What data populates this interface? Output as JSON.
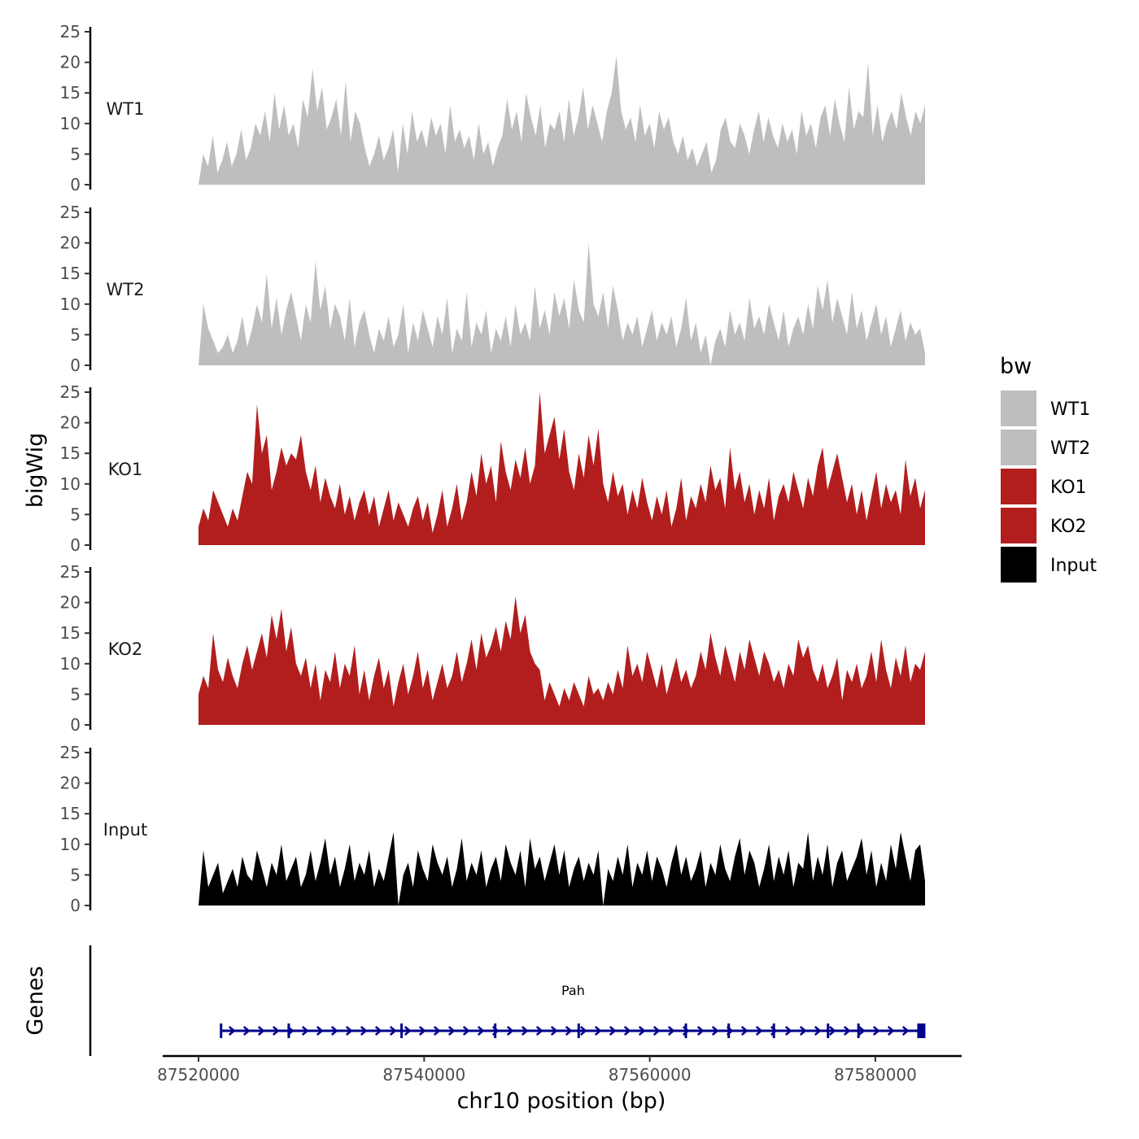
{
  "chart_data": {
    "type": "area",
    "title": "",
    "ylabel": "bigWig",
    "xlabel": "chr10 position (bp)",
    "xlim": [
      87520000,
      87584400
    ],
    "ylim": [
      0,
      25
    ],
    "yticks": [
      "0",
      "5",
      "10",
      "15",
      "20",
      "25"
    ],
    "xticks": [
      {
        "value": 87520000,
        "label": "87520000"
      },
      {
        "value": 87540000,
        "label": "87540000"
      },
      {
        "value": 87560000,
        "label": "87560000"
      },
      {
        "value": 87580000,
        "label": "87580000"
      }
    ],
    "legend": {
      "title": "bw",
      "position": "right",
      "items": [
        {
          "name": "WT1",
          "color": "#bebebe"
        },
        {
          "name": "WT2",
          "color": "#bebebe"
        },
        {
          "name": "KO1",
          "color": "#b21e1e"
        },
        {
          "name": "KO2",
          "color": "#b21e1e"
        },
        {
          "name": "Input",
          "color": "#000000"
        }
      ]
    },
    "series": [
      {
        "name": "WT1",
        "color": "#bebebe",
        "values": [
          0,
          5,
          3,
          8,
          2,
          4,
          7,
          3,
          5,
          9,
          4,
          6,
          10,
          8,
          12,
          7,
          15,
          9,
          13,
          8,
          10,
          6,
          14,
          11,
          19,
          12,
          16,
          9,
          11,
          14,
          8,
          17,
          7,
          12,
          10,
          6,
          3,
          5,
          8,
          4,
          6,
          9,
          2,
          10,
          5,
          12,
          7,
          9,
          6,
          11,
          8,
          10,
          5,
          13,
          7,
          9,
          6,
          8,
          4,
          10,
          5,
          7,
          3,
          6,
          8,
          14,
          9,
          12,
          7,
          15,
          11,
          8,
          13,
          6,
          10,
          9,
          12,
          7,
          14,
          8,
          11,
          16,
          9,
          13,
          10,
          7,
          12,
          15,
          21,
          12,
          9,
          11,
          7,
          13,
          8,
          10,
          6,
          12,
          9,
          11,
          7,
          5,
          8,
          4,
          6,
          3,
          5,
          7,
          2,
          4,
          9,
          11,
          7,
          6,
          10,
          8,
          5,
          9,
          12,
          7,
          11,
          8,
          6,
          10,
          7,
          9,
          5,
          12,
          8,
          10,
          6,
          11,
          13,
          8,
          14,
          10,
          7,
          16,
          9,
          12,
          11,
          20,
          8,
          13,
          7,
          10,
          12,
          9,
          15,
          11,
          8,
          12,
          10,
          13
        ]
      },
      {
        "name": "WT2",
        "color": "#bebebe",
        "values": [
          0,
          10,
          6,
          4,
          2,
          3,
          5,
          2,
          4,
          8,
          3,
          6,
          10,
          7,
          15,
          6,
          11,
          5,
          9,
          12,
          8,
          4,
          10,
          7,
          17,
          9,
          13,
          6,
          10,
          8,
          4,
          11,
          3,
          7,
          9,
          5,
          2,
          6,
          4,
          8,
          3,
          5,
          10,
          2,
          7,
          4,
          9,
          6,
          3,
          8,
          5,
          11,
          2,
          6,
          4,
          12,
          3,
          7,
          5,
          9,
          2,
          6,
          4,
          8,
          3,
          10,
          5,
          7,
          4,
          13,
          6,
          9,
          5,
          12,
          8,
          11,
          6,
          14,
          9,
          7,
          20,
          10,
          8,
          12,
          6,
          13,
          9,
          4,
          7,
          5,
          8,
          3,
          6,
          9,
          4,
          7,
          5,
          8,
          3,
          6,
          11,
          4,
          7,
          2,
          5,
          0,
          4,
          6,
          3,
          9,
          5,
          7,
          4,
          11,
          6,
          8,
          5,
          10,
          7,
          4,
          9,
          3,
          6,
          8,
          5,
          10,
          6,
          13,
          9,
          14,
          7,
          11,
          8,
          5,
          12,
          6,
          9,
          4,
          7,
          10,
          5,
          8,
          3,
          6,
          9,
          4,
          7,
          5,
          6,
          2
        ]
      },
      {
        "name": "KO1",
        "color": "#b21e1e",
        "values": [
          3,
          6,
          4,
          9,
          7,
          5,
          3,
          6,
          4,
          8,
          12,
          10,
          23,
          15,
          18,
          9,
          12,
          16,
          13,
          15,
          14,
          18,
          12,
          9,
          13,
          7,
          11,
          8,
          6,
          10,
          5,
          8,
          4,
          7,
          9,
          5,
          8,
          3,
          6,
          9,
          4,
          7,
          5,
          3,
          6,
          8,
          4,
          7,
          2,
          5,
          9,
          3,
          6,
          10,
          4,
          7,
          12,
          8,
          15,
          10,
          13,
          7,
          17,
          12,
          9,
          14,
          11,
          16,
          10,
          13,
          25,
          15,
          18,
          21,
          14,
          19,
          12,
          9,
          15,
          11,
          18,
          13,
          19,
          10,
          7,
          12,
          8,
          10,
          5,
          9,
          6,
          11,
          7,
          4,
          8,
          5,
          9,
          3,
          6,
          11,
          4,
          8,
          6,
          10,
          7,
          13,
          9,
          11,
          6,
          16,
          9,
          12,
          7,
          10,
          5,
          9,
          6,
          11,
          4,
          8,
          10,
          7,
          12,
          9,
          6,
          11,
          8,
          13,
          16,
          9,
          12,
          15,
          11,
          7,
          10,
          5,
          9,
          4,
          8,
          12,
          6,
          10,
          7,
          9,
          5,
          14,
          8,
          11,
          6,
          9
        ]
      },
      {
        "name": "KO2",
        "color": "#b21e1e",
        "values": [
          5,
          8,
          6,
          15,
          9,
          7,
          11,
          8,
          6,
          10,
          13,
          9,
          12,
          15,
          11,
          18,
          14,
          19,
          12,
          16,
          10,
          8,
          11,
          6,
          10,
          4,
          9,
          7,
          12,
          6,
          10,
          8,
          13,
          5,
          9,
          4,
          8,
          11,
          6,
          9,
          3,
          7,
          10,
          5,
          8,
          12,
          6,
          9,
          4,
          7,
          10,
          6,
          8,
          12,
          7,
          10,
          14,
          9,
          15,
          11,
          13,
          16,
          12,
          17,
          14,
          21,
          15,
          18,
          12,
          10,
          9,
          4,
          7,
          5,
          3,
          6,
          4,
          7,
          5,
          3,
          8,
          5,
          6,
          4,
          7,
          5,
          9,
          6,
          13,
          8,
          10,
          7,
          12,
          9,
          6,
          10,
          5,
          8,
          11,
          7,
          9,
          6,
          8,
          12,
          9,
          15,
          11,
          8,
          13,
          10,
          7,
          12,
          9,
          14,
          11,
          8,
          12,
          10,
          7,
          9,
          6,
          10,
          8,
          14,
          11,
          13,
          9,
          7,
          10,
          6,
          8,
          11,
          4,
          9,
          7,
          10,
          6,
          8,
          12,
          7,
          14,
          9,
          6,
          11,
          8,
          13,
          7,
          10,
          9,
          12
        ]
      },
      {
        "name": "Input",
        "color": "#000000",
        "values": [
          0,
          9,
          3,
          5,
          7,
          2,
          4,
          6,
          3,
          8,
          5,
          4,
          9,
          6,
          3,
          7,
          5,
          10,
          4,
          6,
          8,
          3,
          5,
          9,
          4,
          7,
          11,
          5,
          8,
          3,
          6,
          10,
          4,
          7,
          5,
          9,
          3,
          6,
          4,
          8,
          12,
          0,
          5,
          7,
          3,
          9,
          6,
          4,
          10,
          7,
          5,
          8,
          3,
          6,
          11,
          4,
          7,
          5,
          9,
          3,
          6,
          8,
          4,
          10,
          7,
          5,
          9,
          3,
          11,
          6,
          8,
          4,
          7,
          10,
          5,
          9,
          3,
          6,
          8,
          4,
          7,
          5,
          9,
          0,
          6,
          4,
          8,
          5,
          10,
          3,
          7,
          5,
          9,
          4,
          8,
          6,
          3,
          7,
          10,
          5,
          8,
          4,
          6,
          9,
          3,
          7,
          5,
          10,
          6,
          4,
          8,
          11,
          5,
          9,
          7,
          3,
          6,
          10,
          4,
          8,
          5,
          9,
          3,
          7,
          6,
          12,
          4,
          8,
          5,
          10,
          3,
          7,
          9,
          4,
          6,
          8,
          11,
          5,
          9,
          3,
          7,
          4,
          10,
          6,
          12,
          8,
          4,
          9,
          10,
          4
        ]
      }
    ],
    "genes": {
      "title": "Genes",
      "label": "Pah",
      "start": 87522000,
      "end": 87584400,
      "strand": "+",
      "exons": [
        87522000,
        87528000,
        87538000,
        87546300,
        87553700,
        87563200,
        87567000,
        87571000,
        87575800,
        87578500,
        87584000
      ]
    }
  }
}
